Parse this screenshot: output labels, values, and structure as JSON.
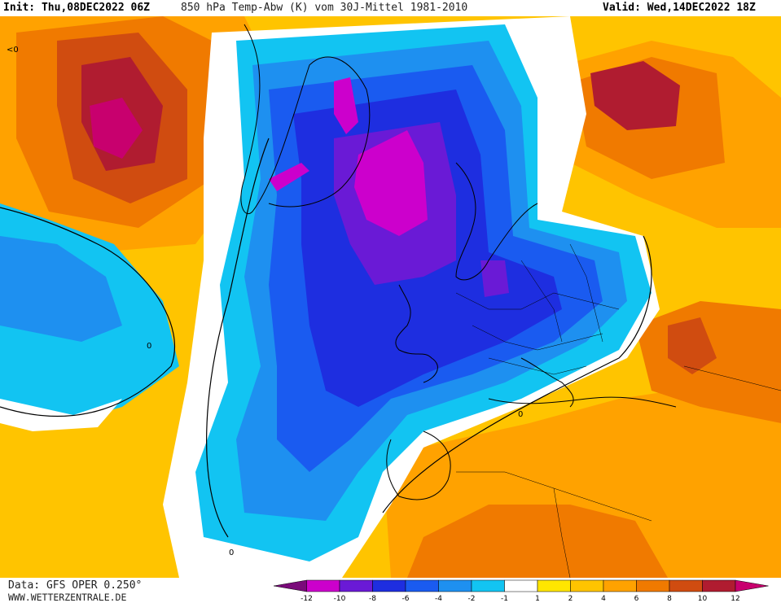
{
  "header": {
    "init": "Init: Thu,08DEC2022 06Z",
    "title": "850 hPa Temp-Abw (K) vom 30J-Mittel 1981-2010",
    "valid": "Valid: Wed,14DEC2022 18Z"
  },
  "footer": {
    "source": "Data: GFS OPER 0.250°",
    "site": "WWW.WETTERZENTRALE.DE"
  },
  "map": {
    "contour_label": "0",
    "edge_label": "<0"
  },
  "legend": {
    "ticks": [
      "-12",
      "-10",
      "-8",
      "-6",
      "-4",
      "-2",
      "-1",
      "1",
      "2",
      "4",
      "6",
      "8",
      "10",
      "12"
    ],
    "colors": [
      "#7a0a7a",
      "#cc00cc",
      "#6a1ad6",
      "#1e2ee0",
      "#1a5bf0",
      "#1e90f0",
      "#12c4f2",
      "#ffffff",
      "#ffe600",
      "#ffc400",
      "#ffa200",
      "#f07a00",
      "#d04c10",
      "#b01c30",
      "#c8006e"
    ]
  }
}
